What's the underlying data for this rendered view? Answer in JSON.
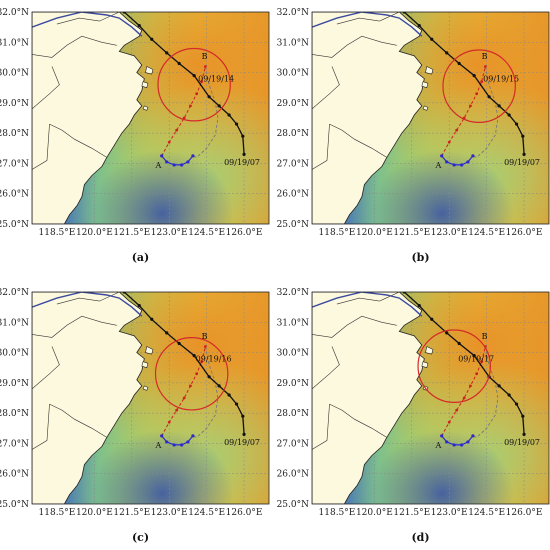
{
  "panels": [
    {
      "caption": "(a)",
      "time_label": "09/19/14",
      "circle": {
        "lon": 124.0,
        "lat": 29.6,
        "r_deg": 1.45
      }
    },
    {
      "caption": "(b)",
      "time_label": "09/19/15",
      "circle": {
        "lon": 124.2,
        "lat": 29.55,
        "r_deg": 1.45
      }
    },
    {
      "caption": "(c)",
      "time_label": "09/19/16",
      "circle": {
        "lon": 123.9,
        "lat": 29.3,
        "r_deg": 1.45
      }
    },
    {
      "caption": "(d)",
      "time_label": "09/19/17",
      "circle": {
        "lon": 123.2,
        "lat": 29.55,
        "r_deg": 1.45
      }
    }
  ],
  "labels": {
    "point_a": "A",
    "point_b": "B",
    "end_time": "09/19/07"
  },
  "axes": {
    "x_ticks": [
      "118.5°E",
      "120.0°E",
      "121.5°E",
      "123.0°E",
      "124.5°E",
      "126.0°E"
    ],
    "x_values": [
      118.5,
      120.0,
      121.5,
      123.0,
      124.5,
      126.0
    ],
    "y_ticks": [
      "32.0°N",
      "31.0°N",
      "30.0°N",
      "29.0°N",
      "28.0°N",
      "27.0°N",
      "26.0°N",
      "25.0°N"
    ],
    "y_values": [
      32,
      31,
      30,
      29,
      28,
      27,
      26,
      25
    ],
    "lon_range": [
      117.5,
      127.0
    ],
    "lat_range": [
      25.0,
      32.0
    ]
  },
  "colors": {
    "land": "#fdf9de",
    "sea_blue": "#3a4aa0",
    "sea_green": "#7cc08a",
    "sea_yellow": "#e6c23a",
    "sea_orange": "#e89a2a",
    "circle": "#d42a2a",
    "track_black": "#111111",
    "track_red": "#cc2222",
    "track_blue": "#2a2ad0"
  },
  "tracks": {
    "typhoon": [
      [
        121.2,
        32.0
      ],
      [
        121.8,
        31.55
      ],
      [
        122.3,
        31.1
      ],
      [
        122.9,
        30.65
      ],
      [
        123.4,
        30.3
      ],
      [
        124.0,
        29.9
      ],
      [
        124.6,
        29.2
      ],
      [
        125.0,
        28.9
      ],
      [
        125.4,
        28.6
      ],
      [
        125.7,
        28.3
      ],
      [
        125.95,
        27.9
      ],
      [
        126.0,
        27.3
      ]
    ],
    "red_line": [
      [
        122.7,
        27.25
      ],
      [
        123.0,
        27.7
      ],
      [
        123.3,
        28.1
      ],
      [
        123.6,
        28.5
      ],
      [
        123.85,
        28.9
      ],
      [
        124.1,
        29.3
      ],
      [
        124.3,
        29.7
      ],
      [
        124.45,
        30.2
      ]
    ],
    "blue_line": [
      [
        122.7,
        27.25
      ],
      [
        122.9,
        27.05
      ],
      [
        123.2,
        26.95
      ],
      [
        123.5,
        26.95
      ],
      [
        123.75,
        27.05
      ],
      [
        123.95,
        27.25
      ]
    ],
    "gray_dashed": [
      [
        124.45,
        30.2
      ],
      [
        124.6,
        29.6
      ],
      [
        124.85,
        29.0
      ],
      [
        124.95,
        28.5
      ],
      [
        124.85,
        27.95
      ],
      [
        124.5,
        27.5
      ],
      [
        124.1,
        27.2
      ],
      [
        123.95,
        27.25
      ]
    ]
  }
}
